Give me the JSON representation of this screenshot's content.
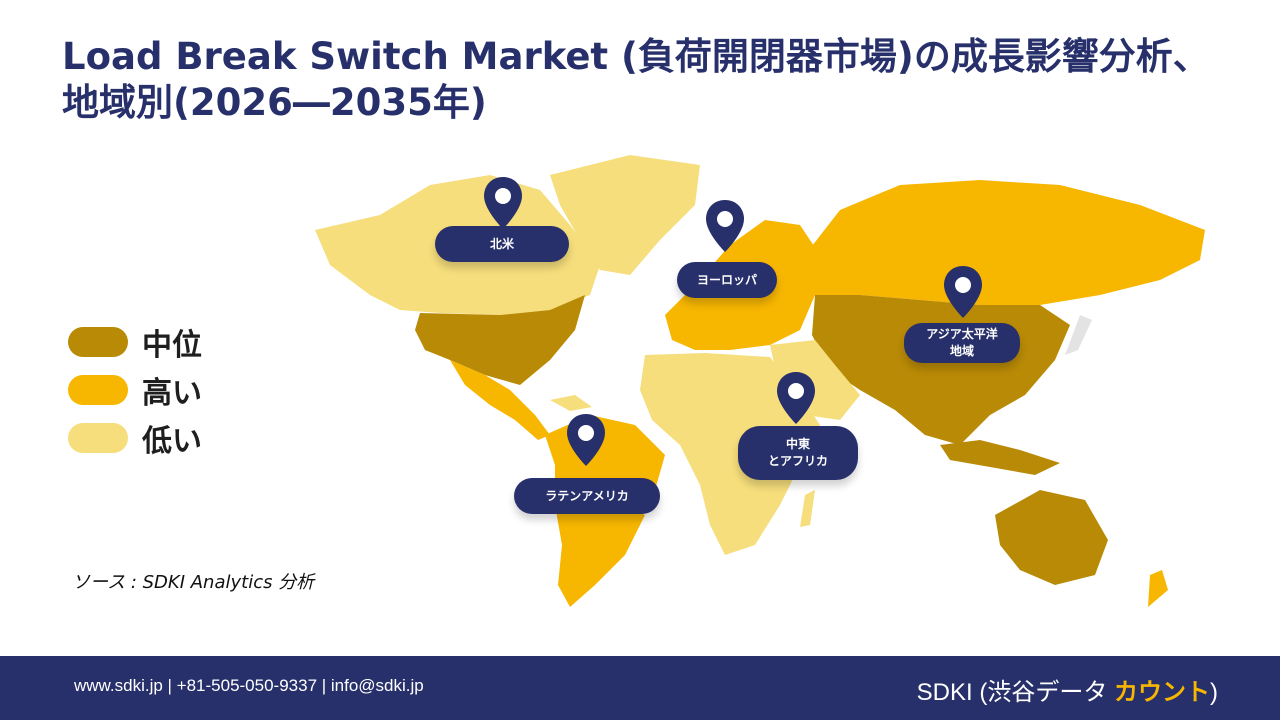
{
  "title": "Load Break Switch Market (負荷開閉器市場)の成長影響分析、地域別(2026―2035年)",
  "colors": {
    "navy": "#27306b",
    "medium": "#b98a06",
    "high": "#f7b600",
    "low": "#f6de7c",
    "other": "#e3e3e3"
  },
  "legend": [
    {
      "label": "中位",
      "color": "#b98a06"
    },
    {
      "label": "高い",
      "color": "#f7b600"
    },
    {
      "label": "低い",
      "color": "#f6de7c"
    }
  ],
  "regions": {
    "north_america": {
      "label_lines": [
        "北米"
      ],
      "icon": "map-pin-icon"
    },
    "europe": {
      "label_lines": [
        "ヨーロッパ"
      ],
      "icon": "map-pin-icon"
    },
    "asia_pacific": {
      "label_lines": [
        "アジア太平洋",
        "地域"
      ],
      "icon": "map-pin-icon"
    },
    "middle_east_africa": {
      "label_lines": [
        "中東",
        "とアフリカ"
      ],
      "icon": "map-pin-icon"
    },
    "latin_america": {
      "label_lines": [
        "ラテンアメリカ"
      ],
      "icon": "map-pin-icon"
    }
  },
  "source": "ソース : SDKI Analytics 分析",
  "footer": {
    "contact": "www.sdki.jp | +81-505-050-9337 | info@sdki.jp",
    "brand_prefix": "SDKI (渋谷データ ",
    "brand_accent": "カウント",
    "brand_suffix": ")"
  }
}
